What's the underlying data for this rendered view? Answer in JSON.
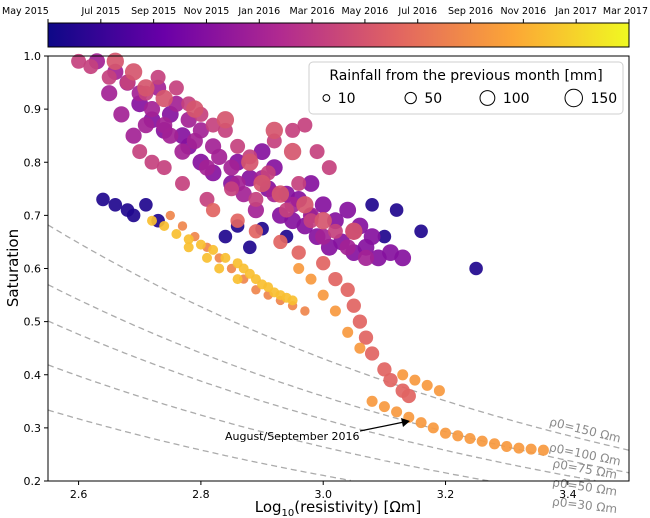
{
  "chart_data": {
    "type": "scatter",
    "xlabel": "Log10(resistivity) [Ωm]",
    "ylabel": "Saturation",
    "xlim": [
      2.55,
      3.5
    ],
    "ylim": [
      0.2,
      1.0
    ],
    "x_ticks": [
      "2.6",
      "2.8",
      "3.0",
      "3.2",
      "3.4"
    ],
    "y_ticks": [
      "0.2",
      "0.3",
      "0.4",
      "0.5",
      "0.6",
      "0.7",
      "0.8",
      "0.9",
      "1.0"
    ],
    "grid": false,
    "colorbar": {
      "position": "top",
      "colormap": [
        "#0d0887",
        "#6a00a8",
        "#b12a90",
        "#e16462",
        "#fca636",
        "#f0f921"
      ],
      "ticks": [
        "May 2015",
        "Jul 2015",
        "Sep 2015",
        "Nov 2015",
        "Jan 2016",
        "Mar 2016",
        "May 2016",
        "Jul 2016",
        "Sep 2016",
        "Nov 2016",
        "Jan 2017",
        "Mar 2017"
      ]
    },
    "legend": {
      "title": "Rainfall from the previous month [mm]",
      "location": "top-right",
      "entries": [
        {
          "label": "10",
          "value": 10
        },
        {
          "label": "50",
          "value": 50
        },
        {
          "label": "100",
          "value": 100
        },
        {
          "label": "150",
          "value": 150
        }
      ]
    },
    "curves": [
      {
        "label": "ρ0=150 Ωm",
        "rho0": 150
      },
      {
        "label": "ρ0=100 Ωm",
        "rho0": 100
      },
      {
        "label": "ρ0=75 Ωm",
        "rho0": 75
      },
      {
        "label": "ρ0=50 Ωm",
        "rho0": 50
      },
      {
        "label": "ρ0=30 Ωm",
        "rho0": 30
      }
    ],
    "annotation": {
      "text": "August/September 2016",
      "arrow_to": [
        3.15,
        0.315
      ]
    },
    "clusters": [
      {
        "date": 0.04,
        "rain": 70,
        "points": [
          [
            2.64,
            0.73
          ],
          [
            2.66,
            0.72
          ],
          [
            2.68,
            0.71
          ],
          [
            2.69,
            0.7
          ],
          [
            2.71,
            0.72
          ],
          [
            2.73,
            0.69
          ],
          [
            2.86,
            0.68
          ],
          [
            2.9,
            0.675
          ],
          [
            2.94,
            0.66
          ],
          [
            2.98,
            0.7
          ],
          [
            3.08,
            0.72
          ],
          [
            3.12,
            0.71
          ],
          [
            3.16,
            0.67
          ],
          [
            3.25,
            0.6
          ],
          [
            2.84,
            0.66
          ],
          [
            2.88,
            0.64
          ],
          [
            3.1,
            0.66
          ]
        ]
      },
      {
        "date": 0.28,
        "rain": 120,
        "points": [
          [
            2.7,
            0.91
          ],
          [
            2.72,
            0.88
          ],
          [
            2.74,
            0.86
          ],
          [
            2.75,
            0.89
          ],
          [
            2.77,
            0.85
          ],
          [
            2.78,
            0.83
          ],
          [
            2.8,
            0.8
          ],
          [
            2.82,
            0.78
          ],
          [
            2.85,
            0.76
          ],
          [
            2.88,
            0.77
          ],
          [
            2.9,
            0.82
          ],
          [
            2.92,
            0.79
          ],
          [
            2.94,
            0.74
          ],
          [
            2.96,
            0.73
          ],
          [
            2.98,
            0.76
          ],
          [
            3.0,
            0.72
          ],
          [
            3.02,
            0.69
          ],
          [
            3.04,
            0.71
          ],
          [
            3.06,
            0.68
          ],
          [
            2.93,
            0.7
          ],
          [
            2.95,
            0.69
          ],
          [
            2.99,
            0.66
          ],
          [
            3.01,
            0.64
          ],
          [
            3.03,
            0.65
          ],
          [
            3.05,
            0.63
          ],
          [
            3.07,
            0.64
          ],
          [
            3.09,
            0.62
          ],
          [
            3.11,
            0.63
          ],
          [
            3.13,
            0.62
          ],
          [
            2.97,
            0.68
          ],
          [
            2.91,
            0.75
          ],
          [
            2.86,
            0.8
          ],
          [
            3.05,
            0.67
          ],
          [
            3.08,
            0.66
          ]
        ]
      },
      {
        "date": 0.36,
        "rain": 110,
        "points": [
          [
            2.63,
            0.99
          ],
          [
            2.66,
            0.97
          ],
          [
            2.68,
            0.95
          ],
          [
            2.7,
            0.93
          ],
          [
            2.72,
            0.9
          ],
          [
            2.73,
            0.94
          ],
          [
            2.74,
            0.87
          ],
          [
            2.75,
            0.85
          ],
          [
            2.76,
            0.91
          ],
          [
            2.78,
            0.88
          ],
          [
            2.79,
            0.84
          ],
          [
            2.8,
            0.86
          ],
          [
            2.82,
            0.83
          ],
          [
            2.83,
            0.81
          ],
          [
            2.85,
            0.79
          ],
          [
            2.86,
            0.76
          ],
          [
            2.87,
            0.74
          ],
          [
            2.89,
            0.71
          ],
          [
            2.9,
            0.77
          ],
          [
            2.92,
            0.74
          ],
          [
            2.95,
            0.72
          ],
          [
            2.98,
            0.7
          ],
          [
            2.65,
            0.93
          ],
          [
            2.67,
            0.89
          ],
          [
            2.69,
            0.85
          ],
          [
            2.71,
            0.87
          ],
          [
            2.77,
            0.82
          ],
          [
            2.81,
            0.79
          ],
          [
            3.0,
            0.66
          ],
          [
            3.04,
            0.64
          ],
          [
            3.07,
            0.62
          ]
        ]
      },
      {
        "date": 0.48,
        "rain": 90,
        "points": [
          [
            2.6,
            0.99
          ],
          [
            2.62,
            0.98
          ],
          [
            2.65,
            0.96
          ],
          [
            2.68,
            0.95
          ],
          [
            2.71,
            0.93
          ],
          [
            2.73,
            0.96
          ],
          [
            2.76,
            0.94
          ],
          [
            2.78,
            0.91
          ],
          [
            2.8,
            0.89
          ],
          [
            2.82,
            0.87
          ],
          [
            2.84,
            0.86
          ],
          [
            2.86,
            0.83
          ],
          [
            2.88,
            0.81
          ],
          [
            2.92,
            0.84
          ],
          [
            2.95,
            0.86
          ],
          [
            2.97,
            0.87
          ],
          [
            2.99,
            0.82
          ],
          [
            3.01,
            0.79
          ],
          [
            2.85,
            0.75
          ],
          [
            2.89,
            0.73
          ],
          [
            2.94,
            0.71
          ],
          [
            2.98,
            0.69
          ],
          [
            3.02,
            0.67
          ],
          [
            2.81,
            0.73
          ],
          [
            2.77,
            0.76
          ],
          [
            2.74,
            0.79
          ],
          [
            2.72,
            0.8
          ],
          [
            2.7,
            0.82
          ],
          [
            2.91,
            0.78
          ],
          [
            2.96,
            0.76
          ]
        ]
      },
      {
        "date": 0.55,
        "rain": 130,
        "points": [
          [
            2.66,
            0.99
          ],
          [
            2.69,
            0.97
          ],
          [
            2.71,
            0.94
          ],
          [
            2.74,
            0.92
          ],
          [
            2.79,
            0.9
          ],
          [
            2.84,
            0.88
          ],
          [
            2.9,
            0.76
          ],
          [
            2.93,
            0.74
          ],
          [
            2.97,
            0.72
          ],
          [
            3.0,
            0.69
          ],
          [
            3.05,
            0.67
          ],
          [
            2.88,
            0.8
          ],
          [
            2.92,
            0.86
          ],
          [
            2.95,
            0.82
          ]
        ]
      },
      {
        "date": 0.6,
        "rain": 80,
        "points": [
          [
            2.82,
            0.71
          ],
          [
            2.86,
            0.69
          ],
          [
            2.89,
            0.67
          ],
          [
            2.93,
            0.65
          ],
          [
            2.96,
            0.63
          ],
          [
            3.0,
            0.61
          ],
          [
            3.02,
            0.58
          ],
          [
            3.04,
            0.56
          ],
          [
            3.05,
            0.53
          ],
          [
            3.06,
            0.5
          ],
          [
            3.07,
            0.47
          ],
          [
            3.08,
            0.44
          ],
          [
            3.1,
            0.41
          ],
          [
            3.11,
            0.39
          ],
          [
            3.13,
            0.37
          ],
          [
            3.14,
            0.36
          ]
        ]
      },
      {
        "date": 0.76,
        "rain": 40,
        "points": [
          [
            3.08,
            0.35
          ],
          [
            3.1,
            0.34
          ],
          [
            3.12,
            0.33
          ],
          [
            3.14,
            0.32
          ],
          [
            3.16,
            0.31
          ],
          [
            3.18,
            0.3
          ],
          [
            3.2,
            0.29
          ],
          [
            3.22,
            0.285
          ],
          [
            3.24,
            0.28
          ],
          [
            3.26,
            0.275
          ],
          [
            3.28,
            0.27
          ],
          [
            3.3,
            0.265
          ],
          [
            3.32,
            0.262
          ],
          [
            3.34,
            0.26
          ],
          [
            3.36,
            0.258
          ],
          [
            3.13,
            0.4
          ],
          [
            3.15,
            0.39
          ],
          [
            3.17,
            0.38
          ],
          [
            3.19,
            0.37
          ],
          [
            3.06,
            0.45
          ],
          [
            3.04,
            0.48
          ],
          [
            3.02,
            0.52
          ],
          [
            3.0,
            0.55
          ],
          [
            2.98,
            0.58
          ],
          [
            2.96,
            0.6
          ]
        ]
      },
      {
        "date": 0.7,
        "rain": 25,
        "points": [
          [
            2.75,
            0.7
          ],
          [
            2.77,
            0.68
          ],
          [
            2.79,
            0.66
          ],
          [
            2.81,
            0.64
          ],
          [
            2.83,
            0.62
          ],
          [
            2.85,
            0.6
          ],
          [
            2.87,
            0.58
          ],
          [
            2.89,
            0.56
          ],
          [
            2.91,
            0.55
          ],
          [
            2.93,
            0.54
          ],
          [
            2.95,
            0.53
          ],
          [
            2.97,
            0.52
          ]
        ]
      },
      {
        "date": 0.86,
        "rain": 30,
        "points": [
          [
            2.72,
            0.69
          ],
          [
            2.74,
            0.68
          ],
          [
            2.76,
            0.665
          ],
          [
            2.78,
            0.655
          ],
          [
            2.8,
            0.645
          ],
          [
            2.82,
            0.635
          ],
          [
            2.84,
            0.62
          ],
          [
            2.86,
            0.61
          ],
          [
            2.87,
            0.6
          ],
          [
            2.88,
            0.59
          ],
          [
            2.89,
            0.58
          ],
          [
            2.9,
            0.57
          ],
          [
            2.91,
            0.565
          ],
          [
            2.92,
            0.555
          ],
          [
            2.93,
            0.55
          ],
          [
            2.94,
            0.545
          ],
          [
            2.95,
            0.54
          ],
          [
            2.78,
            0.64
          ],
          [
            2.81,
            0.62
          ],
          [
            2.83,
            0.6
          ],
          [
            2.86,
            0.58
          ]
        ]
      }
    ]
  }
}
